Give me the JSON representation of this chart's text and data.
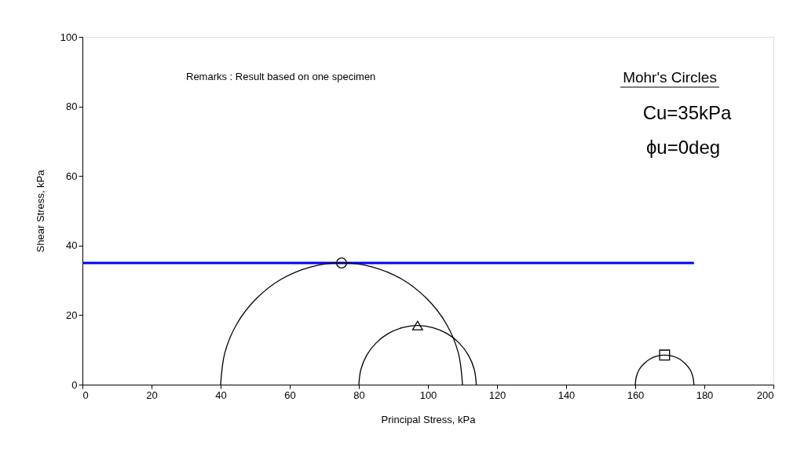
{
  "chart_data": {
    "type": "line",
    "xlabel": "Principal Stress, kPa",
    "ylabel": "Shear Stress, kPa",
    "xlim": [
      0,
      200
    ],
    "xticks": [
      0,
      20,
      40,
      60,
      80,
      100,
      120,
      140,
      160,
      180,
      200
    ],
    "ylim": [
      0,
      100
    ],
    "yticks": [
      0,
      20,
      40,
      60,
      80,
      100
    ],
    "grid": false,
    "annotations": [
      "Remarks : Result based on one specimen",
      "Mohr's Circles",
      "Cu=35kPa",
      "ϕu=0deg"
    ],
    "series": [
      {
        "type": "line",
        "color": "#0000ff",
        "x": [
          0,
          177
        ],
        "values": [
          35,
          35
        ]
      },
      {
        "type": "line",
        "color": "#000000",
        "x": [
          40,
          41.2,
          44.7,
          50.3,
          57.5,
          65.9,
          75,
          84.1,
          92.5,
          99.7,
          105.3,
          108.8,
          110
        ],
        "values": [
          0,
          9.1,
          17.5,
          24.7,
          30.3,
          33.8,
          35,
          33.8,
          30.3,
          24.7,
          17.5,
          9.1,
          0
        ]
      },
      {
        "type": "line",
        "color": "#000000",
        "x": [
          80,
          80.6,
          82.3,
          85.0,
          88.5,
          92.6,
          97,
          101.4,
          105.5,
          109.0,
          111.7,
          113.4,
          114
        ],
        "values": [
          0,
          4.4,
          8.5,
          12.0,
          14.7,
          16.4,
          17,
          16.4,
          14.7,
          12.0,
          8.5,
          4.4,
          0
        ]
      },
      {
        "type": "line",
        "color": "#000000",
        "x": [
          160,
          160.3,
          161.1,
          162.5,
          164.3,
          166.3,
          168.5,
          170.7,
          172.8,
          174.5,
          175.9,
          176.7,
          177
        ],
        "values": [
          0,
          2.2,
          4.3,
          6.0,
          7.4,
          8.2,
          8.5,
          8.2,
          7.4,
          6.0,
          4.3,
          2.2,
          0
        ]
      },
      {
        "type": "scatter",
        "color": "#000000",
        "marker": "circle",
        "x": [
          75
        ],
        "values": [
          35
        ]
      },
      {
        "type": "scatter",
        "color": "#000000",
        "marker": "triangle",
        "x": [
          97
        ],
        "values": [
          17
        ]
      },
      {
        "type": "scatter",
        "color": "#000000",
        "marker": "square",
        "x": [
          168.5
        ],
        "values": [
          8.5
        ]
      }
    ]
  }
}
